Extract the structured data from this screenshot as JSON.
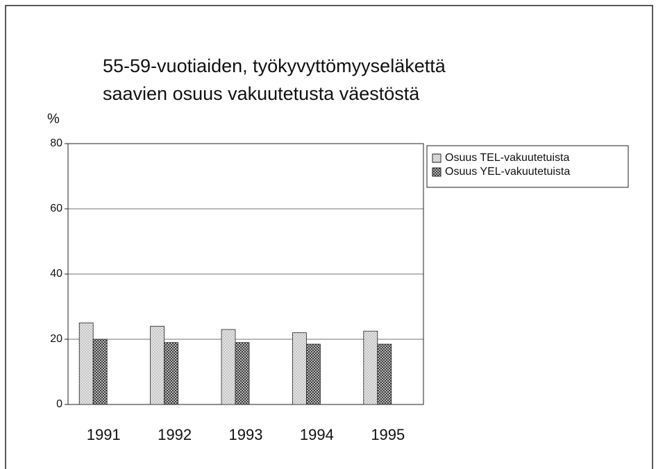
{
  "chart_data": {
    "type": "bar",
    "title": [
      "55-59-vuotiaiden, työkyvyttömyyseläkettä",
      "saavien osuus vakuutetusta väestöstä"
    ],
    "y_label": "%",
    "categories": [
      "1991",
      "1992",
      "1993",
      "1994",
      "1995"
    ],
    "series": [
      {
        "name": "Osuus TEL-vakuutetuista",
        "color": "#e4e4e4",
        "values": [
          25,
          24,
          23,
          22,
          22.5
        ]
      },
      {
        "name": "Osuus YEL-vakuutetuista",
        "color": "#3a3a3a",
        "values": [
          20,
          19,
          19,
          18.5,
          18.5
        ]
      }
    ],
    "ylim": [
      0,
      80
    ],
    "yticks": [
      0,
      20,
      40,
      60,
      80
    ],
    "grid": true,
    "legend": "right"
  }
}
